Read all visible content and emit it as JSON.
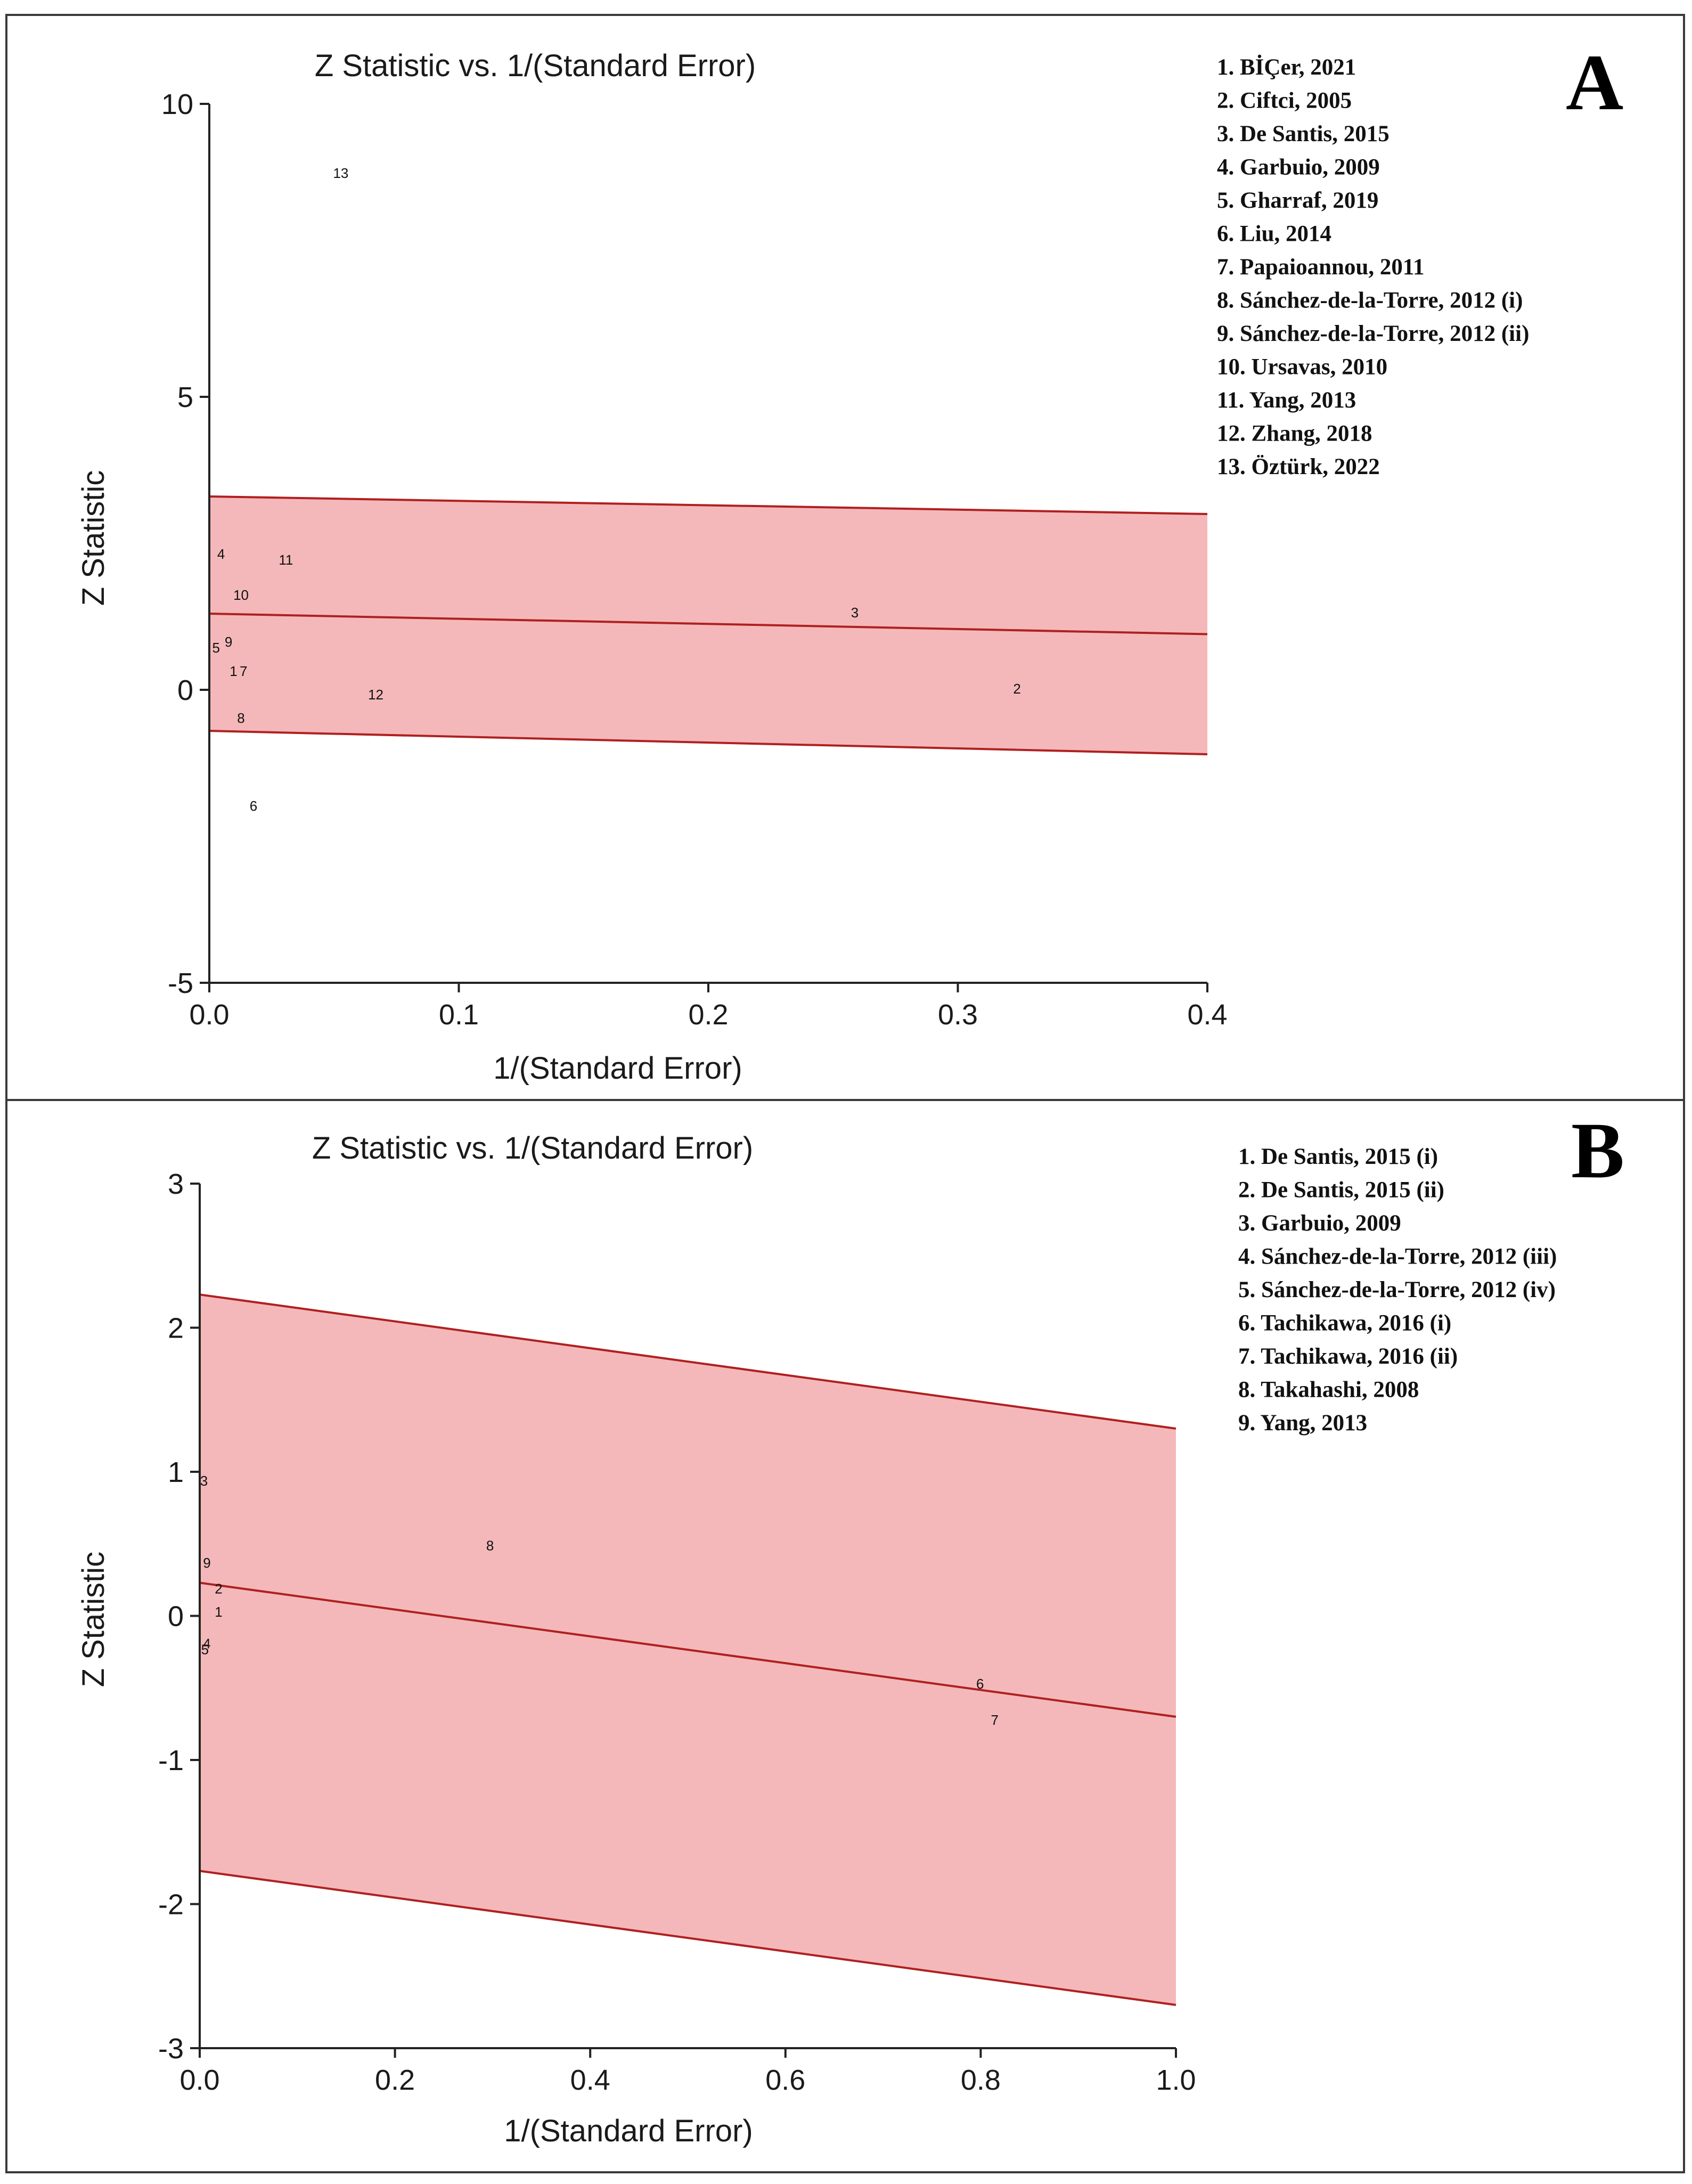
{
  "chart_data": [
    {
      "panel": "A",
      "type": "scatter",
      "title": "Z Statistic vs. 1/(Standard Error)",
      "xlabel": "1/(Standard Error)",
      "ylabel": "Z Statistic",
      "xlim": [
        0,
        0.4
      ],
      "ylim": [
        -5,
        10
      ],
      "xticks": [
        0,
        0.1,
        0.2,
        0.3,
        0.4
      ],
      "xtick_labels": [
        "0.0",
        "0.1",
        "0.2",
        "0.3",
        "0.4"
      ],
      "yticks": [
        -5,
        0,
        5,
        10
      ],
      "ytick_labels": [
        "-5",
        "0",
        "5",
        "10"
      ],
      "regression_line": {
        "x": [
          0,
          0.4
        ],
        "y": [
          1.3,
          0.95
        ]
      },
      "confidence_band": {
        "upper": {
          "x": [
            0,
            0.4
          ],
          "y": [
            3.3,
            3.0
          ]
        },
        "lower": {
          "x": [
            0,
            0.4
          ],
          "y": [
            -0.7,
            -1.1
          ]
        }
      },
      "points": [
        {
          "label": "1",
          "x": 0.008,
          "y": 0.3
        },
        {
          "label": "2",
          "x": 0.322,
          "y": 0.0
        },
        {
          "label": "3",
          "x": 0.257,
          "y": 1.3
        },
        {
          "label": "4",
          "x": 0.003,
          "y": 2.3
        },
        {
          "label": "5",
          "x": 0.001,
          "y": 0.7
        },
        {
          "label": "6",
          "x": 0.016,
          "y": -2.0
        },
        {
          "label": "7",
          "x": 0.012,
          "y": 0.3
        },
        {
          "label": "8",
          "x": 0.011,
          "y": -0.5
        },
        {
          "label": "9",
          "x": 0.006,
          "y": 0.8
        },
        {
          "label": "10",
          "x": 0.011,
          "y": 1.6
        },
        {
          "label": "11",
          "x": 0.029,
          "y": 2.2
        },
        {
          "label": "12",
          "x": 0.065,
          "y": -0.1
        },
        {
          "label": "13",
          "x": 0.051,
          "y": 8.8
        }
      ],
      "legend": [
        "1. BİÇer, 2021",
        "2. Ciftci, 2005",
        "3. De Santis, 2015",
        "4. Garbuio, 2009",
        "5. Gharraf, 2019",
        "6. Liu, 2014",
        "7. Papaioannou, 2011",
        "8. Sánchez-de-la-Torre, 2012 (i)",
        "9. Sánchez-de-la-Torre, 2012 (ii)",
        "10. Ursavas, 2010",
        "11. Yang, 2013",
        "12. Zhang, 2018",
        "13. Öztürk, 2022"
      ]
    },
    {
      "panel": "B",
      "type": "scatter",
      "title": "Z Statistic vs. 1/(Standard Error)",
      "xlabel": "1/(Standard Error)",
      "ylabel": "Z Statistic",
      "xlim": [
        0,
        1.0
      ],
      "ylim": [
        -3,
        3
      ],
      "xticks": [
        0,
        0.2,
        0.4,
        0.6,
        0.8,
        1.0
      ],
      "xtick_labels": [
        "0.0",
        "0.2",
        "0.4",
        "0.6",
        "0.8",
        "1.0"
      ],
      "yticks": [
        -3,
        -2,
        -1,
        0,
        1,
        2,
        3
      ],
      "ytick_labels": [
        "-3",
        "-2",
        "-1",
        "0",
        "1",
        "2",
        "3"
      ],
      "regression_line": {
        "x": [
          0,
          1.0
        ],
        "y": [
          0.23,
          -0.7
        ]
      },
      "confidence_band": {
        "upper": {
          "x": [
            0,
            1.0
          ],
          "y": [
            2.23,
            1.3
          ]
        },
        "lower": {
          "x": [
            0,
            1.0
          ],
          "y": [
            -1.77,
            -2.7
          ]
        }
      },
      "points": [
        {
          "label": "1",
          "x": 0.015,
          "y": 0.02
        },
        {
          "label": "2",
          "x": 0.015,
          "y": 0.18
        },
        {
          "label": "3",
          "x": 0.0,
          "y": 0.93
        },
        {
          "label": "4",
          "x": 0.003,
          "y": -0.2
        },
        {
          "label": "5",
          "x": 0.001,
          "y": -0.24
        },
        {
          "label": "6",
          "x": 0.795,
          "y": -0.48
        },
        {
          "label": "7",
          "x": 0.81,
          "y": -0.73
        },
        {
          "label": "8",
          "x": 0.293,
          "y": 0.48
        },
        {
          "label": "9",
          "x": 0.003,
          "y": 0.36
        }
      ],
      "legend": [
        "1. De Santis, 2015 (i)",
        "2. De Santis, 2015 (ii)",
        "3. Garbuio, 2009",
        "4. Sánchez-de-la-Torre, 2012 (iii)",
        "5. Sánchez-de-la-Torre, 2012 (iv)",
        "6. Tachikawa, 2016 (i)",
        "7. Tachikawa, 2016 (ii)",
        "8. Takahashi, 2008",
        "9. Yang, 2013"
      ]
    }
  ],
  "colors": {
    "band_fill": "#f4b8ba",
    "band_edge": "#b02020",
    "axis": "#222222"
  }
}
